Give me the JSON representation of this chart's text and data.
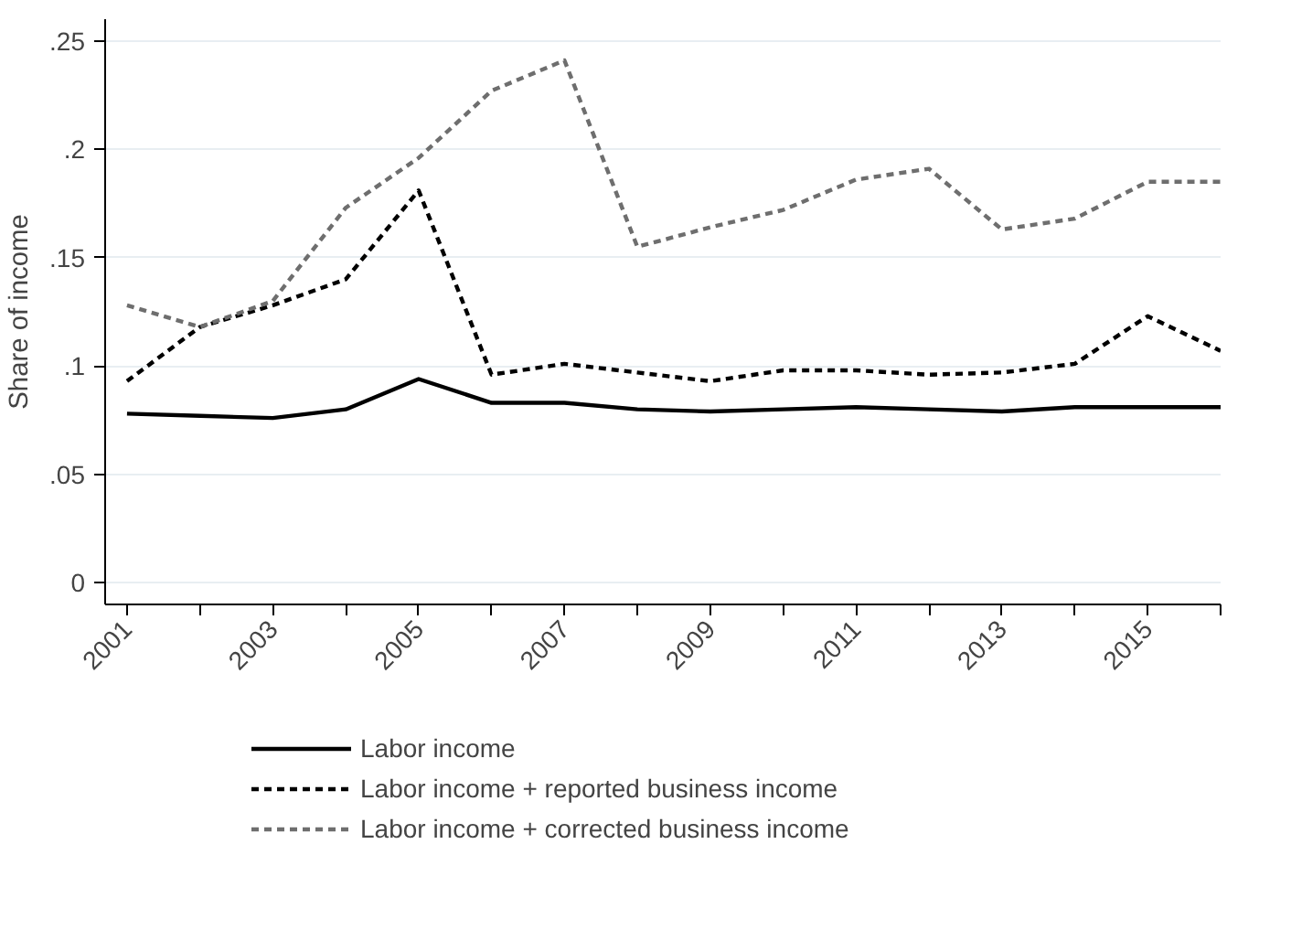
{
  "chart_data": {
    "type": "line",
    "ylabel": "Share of income",
    "x": [
      2001,
      2002,
      2003,
      2004,
      2005,
      2006,
      2007,
      2008,
      2009,
      2010,
      2011,
      2012,
      2013,
      2014,
      2015,
      2016
    ],
    "xlim": [
      2000.7,
      2016
    ],
    "xticks": [
      2001,
      {
        "value": 2002,
        "label": null
      },
      2003,
      {
        "value": 2004,
        "label": null
      },
      2005,
      {
        "value": 2006,
        "label": null
      },
      2007,
      {
        "value": 2008,
        "label": null
      },
      2009,
      {
        "value": 2010,
        "label": null
      },
      2011,
      {
        "value": 2012,
        "label": null
      },
      2013,
      {
        "value": 2014,
        "label": null
      },
      2015,
      {
        "value": 2016,
        "label": null
      }
    ],
    "ylim": [
      -0.01,
      0.26
    ],
    "yticks": [
      {
        "value": 0,
        "label": "0"
      },
      {
        "value": 0.05,
        "label": ".05"
      },
      {
        "value": 0.1,
        "label": ".1"
      },
      {
        "value": 0.15,
        "label": ".15"
      },
      {
        "value": 0.2,
        "label": ".2"
      },
      {
        "value": 0.25,
        "label": ".25"
      }
    ],
    "grid": "y",
    "legend": "bottom",
    "marker": "none",
    "series": [
      {
        "name": "Labor income",
        "color": "#000000",
        "line_style": "solid",
        "values": [
          0.078,
          0.077,
          0.076,
          0.08,
          0.094,
          0.083,
          0.083,
          0.08,
          0.079,
          0.08,
          0.081,
          0.08,
          0.079,
          0.081,
          0.081,
          0.081
        ]
      },
      {
        "name": "Labor income + reported business income",
        "color": "#000000",
        "line_style": "dashed",
        "values": [
          0.093,
          0.118,
          0.128,
          0.14,
          0.181,
          0.096,
          0.101,
          0.097,
          0.093,
          0.098,
          0.098,
          0.096,
          0.097,
          0.101,
          0.123,
          0.107
        ]
      },
      {
        "name": "Labor income + corrected business income",
        "color": "#6e6e6e",
        "line_style": "dashed",
        "values": [
          0.128,
          0.118,
          0.13,
          0.173,
          0.196,
          0.227,
          0.241,
          0.155,
          0.164,
          0.172,
          0.186,
          0.191,
          0.163,
          0.168,
          0.185,
          0.185
        ]
      }
    ]
  }
}
